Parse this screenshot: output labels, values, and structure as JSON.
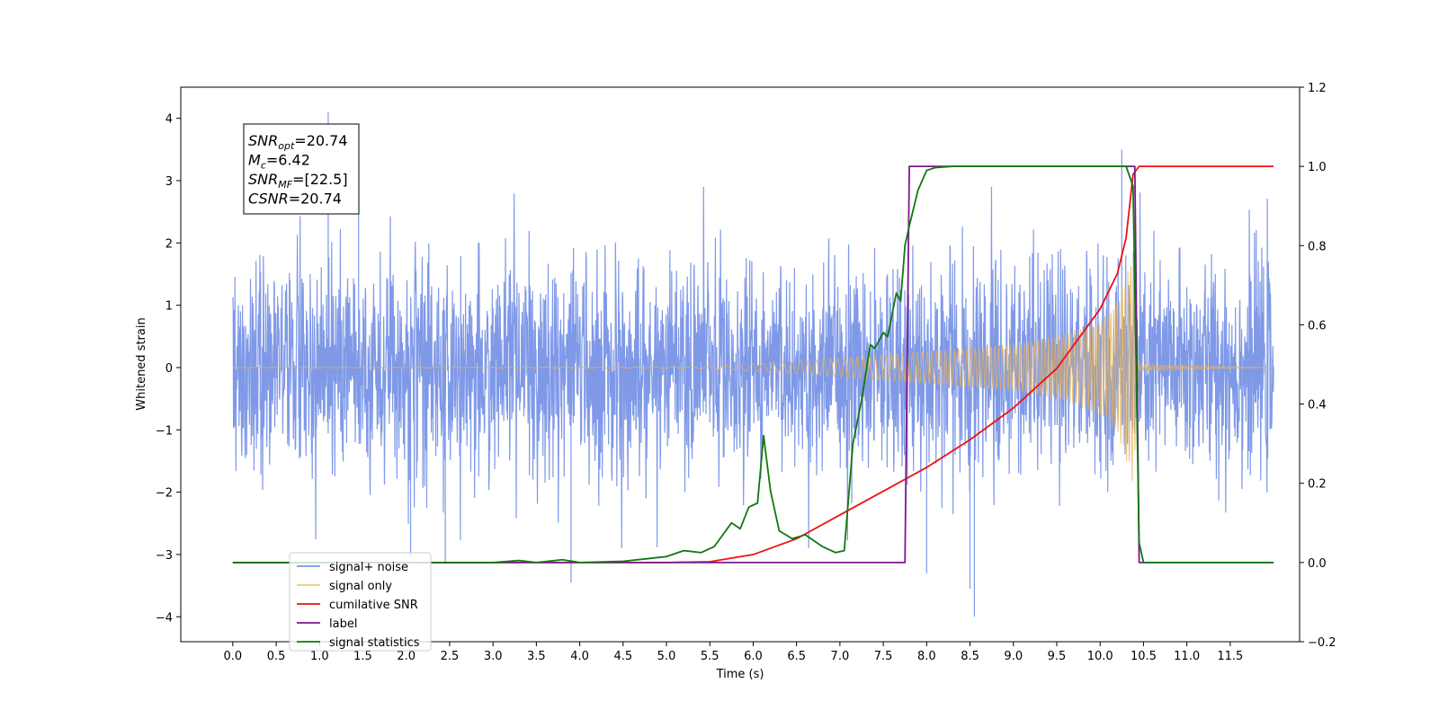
{
  "chart_data": {
    "type": "line",
    "xlabel": "Time (s)",
    "ylabel": "Whitened strain",
    "xlim": [
      -0.6,
      12.3
    ],
    "ylim": [
      -4.4,
      4.5
    ],
    "y2lim": [
      -0.2,
      1.2
    ],
    "x_ticks": [
      "0.0",
      "0.5",
      "1.0",
      "1.5",
      "2.0",
      "2.5",
      "3.0",
      "3.5",
      "4.0",
      "4.5",
      "5.0",
      "5.5",
      "6.0",
      "6.5",
      "7.0",
      "7.5",
      "8.0",
      "8.5",
      "9.0",
      "9.5",
      "10.0",
      "10.5",
      "11.0",
      "11.5"
    ],
    "y_ticks": [
      "−4",
      "−3",
      "−2",
      "−1",
      "0",
      "1",
      "2",
      "3",
      "4"
    ],
    "y2_ticks": [
      "−0.2",
      "0.0",
      "0.2",
      "0.4",
      "0.6",
      "0.8",
      "1.0",
      "1.2"
    ],
    "info_box": {
      "lines": [
        {
          "main": "SNR",
          "sub": "opt",
          "rest": "=20.74"
        },
        {
          "main": "M",
          "sub": "c",
          "rest": "=6.42"
        },
        {
          "main": "SNR",
          "sub": "MF",
          "rest": "=[22.5]"
        },
        {
          "main": "CSNR",
          "sub": "",
          "rest": "=20.74"
        }
      ]
    },
    "series": [
      {
        "name": "signal+ noise",
        "axis": "left",
        "color": "#7894e6",
        "description": "whitened strain noise, amplitude ~±2.5 with spikes to ±4",
        "noise_std": 0.85,
        "spikes": [
          [
            1.1,
            4.1
          ],
          [
            2.05,
            -3.05
          ],
          [
            2.45,
            -3.15
          ],
          [
            3.9,
            -3.45
          ],
          [
            8.5,
            -3.55
          ],
          [
            8.55,
            -4.0
          ],
          [
            10.25,
            3.5
          ],
          [
            1.45,
            3.3
          ],
          [
            8.0,
            -3.3
          ]
        ]
      },
      {
        "name": "signal only",
        "axis": "left",
        "color": "#e6b15a",
        "description": "inspiral chirp, amplitude grows from ~0 at 5.5 s to ~1.9 at 10.38 s, zero after 10.45 s",
        "envelope": [
          [
            0.0,
            0.0
          ],
          [
            5.5,
            0.01
          ],
          [
            6.0,
            0.06
          ],
          [
            7.0,
            0.15
          ],
          [
            8.0,
            0.26
          ],
          [
            9.0,
            0.38
          ],
          [
            9.5,
            0.5
          ],
          [
            10.0,
            0.75
          ],
          [
            10.2,
            1.05
          ],
          [
            10.35,
            1.7
          ],
          [
            10.38,
            1.9
          ],
          [
            10.45,
            0.05
          ],
          [
            12.0,
            0.0
          ]
        ]
      },
      {
        "name": "cumilative SNR",
        "axis": "right",
        "color": "#ee1111",
        "x": [
          0.0,
          5.0,
          5.5,
          6.0,
          6.5,
          7.0,
          7.5,
          8.0,
          8.5,
          9.0,
          9.5,
          10.0,
          10.2,
          10.3,
          10.38,
          10.45,
          12.0
        ],
        "values": [
          0.0,
          0.0,
          0.002,
          0.02,
          0.06,
          0.12,
          0.18,
          0.24,
          0.31,
          0.39,
          0.49,
          0.64,
          0.73,
          0.82,
          0.98,
          1.0,
          1.0
        ]
      },
      {
        "name": "label",
        "axis": "right",
        "color": "#7a1a8a",
        "x": [
          0.0,
          7.75,
          7.8,
          10.4,
          10.45,
          12.0
        ],
        "values": [
          0.0,
          0.0,
          1.0,
          1.0,
          0.0,
          0.0
        ]
      },
      {
        "name": "signal statistics",
        "axis": "right",
        "color": "#117711",
        "x": [
          0.0,
          3.0,
          3.3,
          3.5,
          3.8,
          4.0,
          4.5,
          4.8,
          5.0,
          5.2,
          5.4,
          5.55,
          5.65,
          5.75,
          5.85,
          5.95,
          6.05,
          6.12,
          6.2,
          6.3,
          6.45,
          6.6,
          6.8,
          6.95,
          7.05,
          7.15,
          7.25,
          7.35,
          7.4,
          7.5,
          7.55,
          7.65,
          7.7,
          7.75,
          7.8,
          7.9,
          8.0,
          8.1,
          8.3,
          8.5,
          9.0,
          10.0,
          10.3,
          10.38,
          10.45,
          10.5,
          12.0
        ],
        "values": [
          0.0,
          0.0,
          0.005,
          0.0,
          0.007,
          0.0,
          0.003,
          0.01,
          0.015,
          0.03,
          0.025,
          0.04,
          0.07,
          0.1,
          0.085,
          0.14,
          0.15,
          0.32,
          0.18,
          0.08,
          0.06,
          0.07,
          0.04,
          0.025,
          0.03,
          0.3,
          0.41,
          0.55,
          0.54,
          0.58,
          0.57,
          0.68,
          0.66,
          0.8,
          0.85,
          0.94,
          0.99,
          0.997,
          1.0,
          1.0,
          1.0,
          1.0,
          1.0,
          0.95,
          0.05,
          0.0,
          0.0
        ]
      }
    ],
    "legend": {
      "placement": "lower-left",
      "entries": [
        {
          "label": "signal+ noise",
          "color": "#7894e6"
        },
        {
          "label": "signal only",
          "color": "#f5c87a"
        },
        {
          "label": "cumilative SNR",
          "color": "#ee1111"
        },
        {
          "label": "label",
          "color": "#7a1a8a"
        },
        {
          "label": "signal statistics",
          "color": "#117711"
        }
      ]
    }
  }
}
